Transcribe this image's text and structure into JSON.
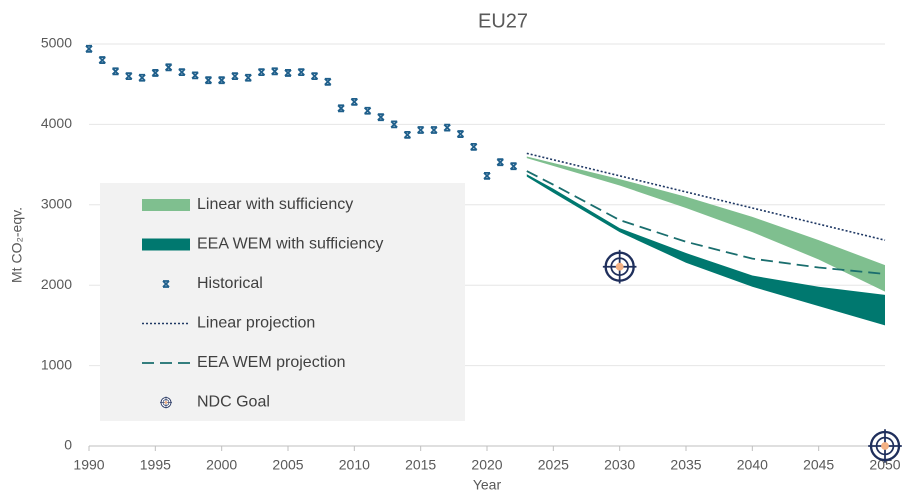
{
  "chart_data": {
    "type": "line",
    "title": "EU27",
    "xlabel": "Year",
    "ylabel": "Mt CO₂-eqv.",
    "xlim": [
      1990,
      2050
    ],
    "ylim": [
      0,
      5000
    ],
    "xticks": [
      1990,
      1995,
      2000,
      2005,
      2010,
      2015,
      2020,
      2025,
      2030,
      2035,
      2040,
      2045,
      2050
    ],
    "yticks": [
      0,
      1000,
      2000,
      3000,
      4000,
      5000
    ],
    "grid": true,
    "legend": "center-left",
    "series": [
      {
        "name": "Linear with sufficiency",
        "style": "band",
        "color": "#7fbf8f",
        "x": [
          2023,
          2030,
          2035,
          2040,
          2045,
          2050
        ],
        "upper": [
          3600,
          3320,
          3100,
          2850,
          2560,
          2250
        ],
        "lower": [
          3580,
          3240,
          2960,
          2660,
          2320,
          1920
        ]
      },
      {
        "name": "EEA WEM with sufficiency",
        "style": "band",
        "color": "#00786f",
        "x": [
          2023,
          2025,
          2030,
          2035,
          2040,
          2045,
          2050
        ],
        "upper": [
          3380,
          3200,
          2710,
          2400,
          2120,
          1980,
          1880
        ],
        "lower": [
          3350,
          3150,
          2660,
          2280,
          1980,
          1740,
          1500
        ]
      },
      {
        "name": "Historical",
        "style": "markers",
        "color": "#1f5f8b",
        "x": [
          1990,
          1991,
          1992,
          1993,
          1994,
          1995,
          1996,
          1997,
          1998,
          1999,
          2000,
          2001,
          2002,
          2003,
          2004,
          2005,
          2006,
          2007,
          2008,
          2009,
          2010,
          2011,
          2012,
          2013,
          2014,
          2015,
          2016,
          2017,
          2018,
          2019,
          2020,
          2021,
          2022
        ],
        "values": [
          4940,
          4800,
          4660,
          4600,
          4580,
          4640,
          4710,
          4650,
          4610,
          4550,
          4550,
          4600,
          4580,
          4650,
          4660,
          4640,
          4650,
          4600,
          4530,
          4200,
          4280,
          4170,
          4090,
          4000,
          3870,
          3930,
          3930,
          3960,
          3880,
          3720,
          3360,
          3530,
          3480
        ]
      },
      {
        "name": "Linear projection",
        "style": "dotted",
        "color": "#1f3864",
        "x": [
          2023,
          2030,
          2035,
          2040,
          2045,
          2050
        ],
        "values": [
          3640,
          3360,
          3160,
          2960,
          2760,
          2560
        ]
      },
      {
        "name": "EEA WEM projection",
        "style": "dashed",
        "color": "#1a6e6e",
        "x": [
          2023,
          2025,
          2030,
          2035,
          2040,
          2045,
          2050
        ],
        "values": [
          3420,
          3250,
          2810,
          2540,
          2330,
          2220,
          2140
        ]
      },
      {
        "name": "NDC Goal",
        "style": "target",
        "color": "#1f2f5c",
        "x": [
          2030,
          2050
        ],
        "values": [
          2230,
          0
        ]
      }
    ]
  }
}
